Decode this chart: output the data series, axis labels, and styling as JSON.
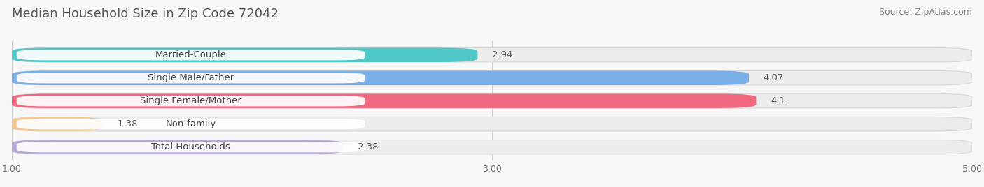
{
  "title": "Median Household Size in Zip Code 72042",
  "source": "Source: ZipAtlas.com",
  "categories": [
    "Married-Couple",
    "Single Male/Father",
    "Single Female/Mother",
    "Non-family",
    "Total Households"
  ],
  "values": [
    2.94,
    4.07,
    4.1,
    1.38,
    2.38
  ],
  "bar_colors": [
    "#50c8c8",
    "#7aaee8",
    "#f06880",
    "#f5c992",
    "#b8a8d8"
  ],
  "xlim": [
    1.0,
    5.0
  ],
  "xticks": [
    1.0,
    3.0,
    5.0
  ],
  "title_fontsize": 13,
  "source_fontsize": 9,
  "label_fontsize": 9.5,
  "value_fontsize": 9.5,
  "background_color": "#f7f7f7",
  "bar_bg_color": "#ececec"
}
